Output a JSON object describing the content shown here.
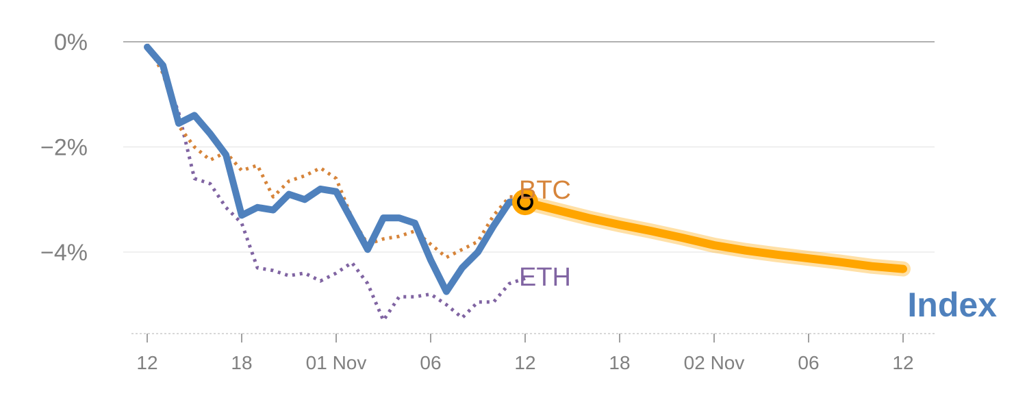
{
  "chart_data": {
    "type": "line",
    "y_unit": "%",
    "ylim": [
      -5.5,
      0
    ],
    "yticks": [
      {
        "value": 0,
        "label": "0%"
      },
      {
        "value": -2,
        "label": "−2%"
      },
      {
        "value": -4,
        "label": "−4%"
      }
    ],
    "xticks": [
      {
        "x": 0,
        "label": "12"
      },
      {
        "x": 6,
        "label": "18"
      },
      {
        "x": 12,
        "label": "01 Nov"
      },
      {
        "x": 18,
        "label": "06"
      },
      {
        "x": 24,
        "label": "12"
      },
      {
        "x": 30,
        "label": "18"
      },
      {
        "x": 36,
        "label": "02 Nov"
      },
      {
        "x": 42,
        "label": "06"
      },
      {
        "x": 48,
        "label": "12"
      }
    ],
    "grid": true,
    "colors": {
      "index": "#4f81bd",
      "btc": "#d6843a",
      "eth": "#8064a2",
      "projection": "#ffa500",
      "grid": "#e6e6e6",
      "zero_line": "#808080",
      "tick_text": "#808080"
    },
    "series": [
      {
        "name": "Index",
        "style": "solid",
        "x": [
          0,
          1,
          2,
          3,
          4,
          5,
          6,
          7,
          8,
          9,
          10,
          11,
          12,
          13,
          14,
          15,
          16,
          17,
          18,
          19,
          20,
          21,
          22,
          23,
          24
        ],
        "values": [
          -0.1,
          -0.45,
          -1.55,
          -1.4,
          -1.75,
          -2.15,
          -3.3,
          -3.15,
          -3.2,
          -2.9,
          -3.0,
          -2.8,
          -2.85,
          -3.4,
          -3.95,
          -3.35,
          -3.35,
          -3.45,
          -4.15,
          -4.75,
          -4.3,
          -4.0,
          -3.5,
          -3.05,
          -3.05
        ]
      },
      {
        "name": "BTC",
        "style": "dotted",
        "x": [
          0,
          1,
          2,
          3,
          4,
          5,
          6,
          7,
          8,
          9,
          10,
          11,
          12,
          13,
          14,
          15,
          16,
          17,
          18,
          19,
          20,
          21,
          22,
          23,
          24
        ],
        "values": [
          -0.05,
          -0.6,
          -1.6,
          -2.0,
          -2.25,
          -2.1,
          -2.45,
          -2.35,
          -2.95,
          -2.65,
          -2.55,
          -2.4,
          -2.6,
          -3.35,
          -3.85,
          -3.75,
          -3.7,
          -3.6,
          -3.85,
          -4.1,
          -3.95,
          -3.8,
          -3.3,
          -2.95,
          -2.95
        ]
      },
      {
        "name": "ETH",
        "style": "dotted",
        "x": [
          0,
          1,
          2,
          3,
          4,
          5,
          6,
          7,
          8,
          9,
          10,
          11,
          12,
          13,
          14,
          15,
          16,
          17,
          18,
          19,
          20,
          21,
          22,
          23,
          24
        ],
        "values": [
          -0.05,
          -0.55,
          -1.35,
          -2.6,
          -2.7,
          -3.15,
          -3.45,
          -4.3,
          -4.35,
          -4.45,
          -4.4,
          -4.55,
          -4.4,
          -4.2,
          -4.6,
          -5.3,
          -4.85,
          -4.85,
          -4.8,
          -5.0,
          -5.25,
          -4.95,
          -4.95,
          -4.6,
          -4.5
        ]
      },
      {
        "name": "Index",
        "style": "projection",
        "x": [
          24,
          26,
          28,
          30,
          32,
          34,
          36,
          38,
          40,
          42,
          44,
          46,
          48
        ],
        "values": [
          -3.05,
          -3.2,
          -3.35,
          -3.48,
          -3.6,
          -3.73,
          -3.87,
          -3.97,
          -4.05,
          -4.12,
          -4.19,
          -4.27,
          -4.32
        ]
      }
    ],
    "marker": {
      "x": 24,
      "value": -3.05
    },
    "labels": {
      "btc": "BTC",
      "eth": "ETH",
      "index": "Index"
    }
  }
}
